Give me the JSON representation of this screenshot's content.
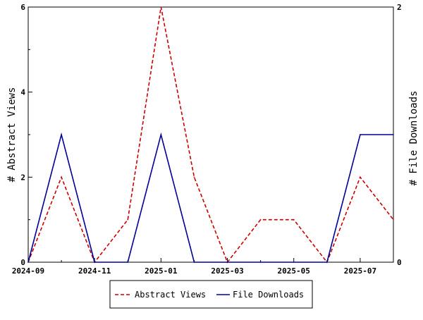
{
  "chart_data": {
    "type": "line",
    "x": [
      "2024-09",
      "2024-10",
      "2024-11",
      "2024-12",
      "2025-01",
      "2025-02",
      "2025-03",
      "2025-04",
      "2025-05",
      "2025-06",
      "2025-07",
      "2025-08"
    ],
    "x_tick_labels": [
      "2024-09",
      "2024-11",
      "2025-01",
      "2025-03",
      "2025-05",
      "2025-07"
    ],
    "series": [
      {
        "name": "Abstract Views",
        "axis": "left",
        "values": [
          0,
          2,
          0,
          1,
          6,
          2,
          0,
          1,
          1,
          0,
          2,
          1
        ],
        "color": "#cc0000",
        "dash": "dashed"
      },
      {
        "name": "File Downloads",
        "axis": "right",
        "values": [
          0,
          1,
          0,
          0,
          1,
          0,
          0,
          0,
          0,
          0,
          1,
          1
        ],
        "color": "#000099",
        "dash": "solid"
      }
    ],
    "ylabel": "# Abstract Views",
    "y2label": "# File Downloads",
    "ylim": [
      0,
      6
    ],
    "y_ticks": [
      0,
      2,
      4,
      6
    ],
    "y2lim": [
      0,
      2
    ],
    "y2_ticks": [
      0,
      2
    ],
    "grid": false,
    "legend_position": "bottom-center"
  }
}
